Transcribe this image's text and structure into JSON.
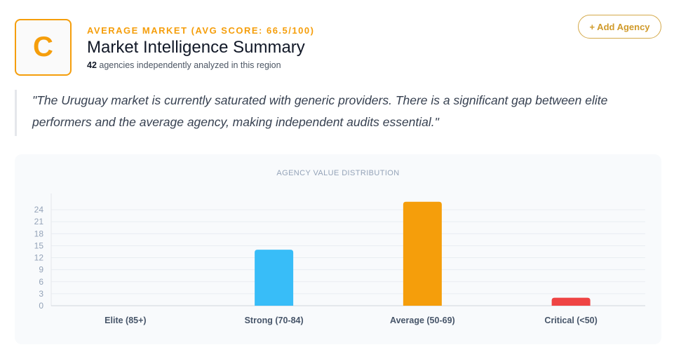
{
  "header": {
    "grade": "C",
    "eyebrow": "AVERAGE MARKET (AVG SCORE: 66.5/100)",
    "title": "Market Intelligence Summary",
    "agency_count": "42",
    "subtitle_rest": " agencies independently analyzed in this region"
  },
  "actions": {
    "add_label": "+ Add Agency"
  },
  "quote": "\"The Uruguay market is currently saturated with generic providers. There is a significant gap between elite performers and the average agency, making independent audits essential.\"",
  "colors": {
    "accent": "#f59e0b",
    "strong": "#38bdf8",
    "average": "#f59e0b",
    "critical": "#ef4444"
  },
  "chart_data": {
    "type": "bar",
    "title": "AGENCY VALUE DISTRIBUTION",
    "categories": [
      "Elite (85+)",
      "Strong (70-84)",
      "Average (50-69)",
      "Critical (<50)"
    ],
    "values": [
      0,
      14,
      26,
      2
    ],
    "bar_colors": [
      "#94a3b8",
      "#38bdf8",
      "#f59e0b",
      "#ef4444"
    ],
    "yticks": [
      0,
      3,
      6,
      9,
      12,
      15,
      18,
      21,
      24
    ],
    "ylim": [
      0,
      27
    ],
    "grid": true,
    "legend": "none"
  }
}
